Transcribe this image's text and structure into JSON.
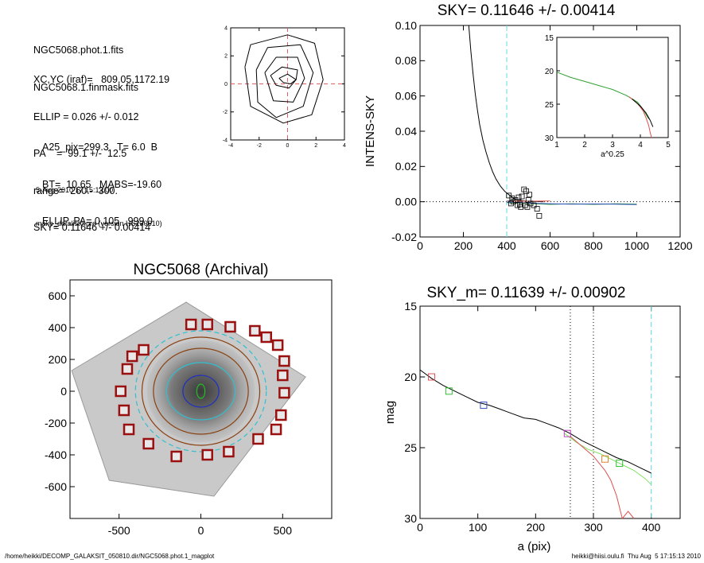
{
  "info_block": {
    "files": [
      "NGC5068.phot.1.fits",
      "NGC5068.1.finmask.fits"
    ],
    "params": [
      "XC,YC (iraf)=   809.05,1172.19",
      "ELLIP = 0.026 +/- 0.012",
      "PA    =  99.1 +/-  12.5",
      "range=  260.-  300.",
      "SKY= 0.11646 +/- 0.00414"
    ],
    "derived": [
      "A25_pix=299.3   T= 6.0  B",
      "BT=  10.65   MABS=-19.60",
      "ELLIP, PA= 0.105   999.0"
    ],
    "timestamp": "5-Aug-2010 17:15:13.00",
    "program": "make_datalist0.pro (version HS230610)"
  },
  "footer": {
    "path": "/home/heikki/DECOMP_GALAKSIT_050810.dir/NGC5068.phot.1_magplot",
    "user": "heikki@hiisi.oulu.fi  Thu Aug  5 17:15:13 2010"
  },
  "chart_data": [
    {
      "id": "center-contour",
      "type": "contour",
      "title": "",
      "xlim": [
        -4,
        4
      ],
      "ylim": [
        -4,
        4
      ],
      "xticks": [
        -4,
        -2,
        0,
        2,
        4
      ],
      "yticks": [
        -4,
        -2,
        0,
        2,
        4
      ],
      "crosshair": [
        0,
        0
      ],
      "colors": {
        "contour": "#000000",
        "crosshair": "#e06060"
      },
      "contours": [
        [
          [
            -0.6,
            0.4
          ],
          [
            0,
            0.7
          ],
          [
            0.6,
            0.3
          ],
          [
            0.2,
            0
          ],
          [
            -0.3,
            0.1
          ],
          [
            -0.6,
            0.4
          ]
        ],
        [
          [
            -1.2,
            0.6
          ],
          [
            -0.4,
            1.2
          ],
          [
            0.7,
            1.0
          ],
          [
            0.6,
            0.3
          ],
          [
            0.1,
            -0.3
          ],
          [
            -0.8,
            -0.1
          ],
          [
            -1.2,
            0.6
          ]
        ],
        [
          [
            -1.6,
            0.8
          ],
          [
            -0.8,
            1.9
          ],
          [
            0.7,
            1.9
          ],
          [
            1.2,
            0.4
          ],
          [
            0.4,
            -1.3
          ],
          [
            -1.0,
            -1.2
          ],
          [
            -1.6,
            0.8
          ]
        ],
        [
          [
            -2.2,
            1.0
          ],
          [
            -1.4,
            2.6
          ],
          [
            0.9,
            2.8
          ],
          [
            1.8,
            0.8
          ],
          [
            1.1,
            -1.6
          ],
          [
            -0.8,
            -2.4
          ],
          [
            -2.1,
            -1.3
          ],
          [
            -2.2,
            1.0
          ]
        ],
        [
          [
            -3.0,
            1.2
          ],
          [
            -2.6,
            2.8
          ],
          [
            0.0,
            3.5
          ],
          [
            1.9,
            2.9
          ],
          [
            2.5,
            0.3
          ],
          [
            1.7,
            -2.2
          ],
          [
            -0.3,
            -2.8
          ],
          [
            -2.6,
            -1.6
          ],
          [
            -3.0,
            1.2
          ]
        ]
      ]
    },
    {
      "id": "sky-profile",
      "type": "line",
      "title": "SKY= 0.11646 +/- 0.00414",
      "xlabel": "",
      "ylabel": "INTENS-SKY",
      "xlim": [
        0,
        1200
      ],
      "ylim": [
        -0.02,
        0.1
      ],
      "xticks": [
        0,
        200,
        400,
        600,
        800,
        1000,
        1200
      ],
      "yticks": [
        -0.02,
        0.0,
        0.02,
        0.04,
        0.06,
        0.08,
        0.1
      ],
      "ytick_labels": [
        "-0.02",
        "0.00",
        "0.02",
        "0.04",
        "0.06",
        "0.08",
        "0.10"
      ],
      "vline": 400,
      "colors": {
        "profile": "#000000",
        "vline": "#5fd8e8",
        "sky_red": "#e05050",
        "green": "#30a030",
        "blue": "#3050c0"
      },
      "series": [
        {
          "x": [
            225,
            235,
            245,
            255,
            265,
            275,
            290,
            305,
            320,
            335,
            350,
            370,
            390,
            410,
            430,
            450,
            480,
            510,
            540,
            570
          ],
          "y": [
            0.1,
            0.085,
            0.072,
            0.061,
            0.052,
            0.044,
            0.035,
            0.028,
            0.022,
            0.017,
            0.013,
            0.009,
            0.006,
            0.004,
            0.002,
            0.001,
            0.0005,
            0.0002,
            0.0001,
            0.0
          ]
        },
        {
          "x": [
            400,
            500,
            600,
            700,
            800,
            900,
            1000
          ],
          "y": [
            -0.0005,
            -0.001,
            -0.0015,
            -0.0012,
            -0.0015,
            -0.0012,
            -0.0014
          ]
        },
        {
          "x": [
            400,
            500,
            600,
            700,
            800,
            900,
            1000
          ],
          "y": [
            -0.0002,
            -0.0008,
            -0.0012,
            -0.0014,
            -0.0013,
            -0.0014,
            -0.0016
          ]
        },
        {
          "x": [
            400,
            500,
            600
          ],
          "y": [
            0.0004,
            0.0003,
            0.0004
          ]
        }
      ],
      "points_x": [
        410,
        425,
        440,
        455,
        470,
        480,
        490,
        500,
        510,
        420,
        450,
        465,
        495,
        525,
        540,
        430,
        460,
        485,
        505,
        550
      ],
      "points_y": [
        0.0035,
        0.002,
        0.001,
        0.0025,
        0.003,
        0.007,
        0.006,
        0.001,
        -0.001,
        -0.001,
        -0.002,
        -0.003,
        -0.003,
        -0.002,
        -0.004,
        0.0,
        -0.0015,
        -0.002,
        0.004,
        -0.008
      ],
      "inset": {
        "xlabel": "a^0.25",
        "xlim": [
          1,
          5
        ],
        "ylim": [
          30,
          15
        ],
        "xticks": [
          1,
          2,
          3,
          4,
          5
        ],
        "yticks": [
          15,
          20,
          25,
          30
        ],
        "series": [
          {
            "x": [
              1.0,
              1.5,
              2.0,
              2.5,
              3.0,
              3.5,
              3.9,
              4.1,
              4.3
            ],
            "y": [
              20.2,
              21.0,
              21.6,
              22.2,
              22.8,
              23.7,
              24.7,
              25.8,
              27.2
            ]
          },
          {
            "x": [
              3.6,
              3.9,
              4.1,
              4.2,
              4.3,
              4.35,
              4.4
            ],
            "y": [
              23.9,
              24.9,
              26.0,
              27.0,
              28.2,
              29.2,
              30.0
            ]
          },
          {
            "x": [
              3.7,
              4.0,
              4.2,
              4.35,
              4.45
            ],
            "y": [
              24.2,
              25.3,
              26.3,
              27.4,
              28.4
            ]
          }
        ]
      }
    },
    {
      "id": "archival-image",
      "type": "image",
      "title": "NGC5068 (Archival)",
      "xlim": [
        -800,
        800
      ],
      "ylim": [
        -800,
        700
      ],
      "xticks": [
        -500,
        0,
        500
      ],
      "yticks": [
        -600,
        -400,
        -200,
        0,
        200,
        400,
        600
      ],
      "colors": {
        "markers": "#9a1010",
        "ellipse_cyan": "#30c0d0",
        "ellipse_brown": "#8a4010",
        "ellipse_blue": "#2030c0",
        "ellipse_green": "#20c020"
      },
      "markers_x": [
        -60,
        40,
        180,
        330,
        400,
        470,
        510,
        500,
        510,
        490,
        460,
        350,
        170,
        40,
        -150,
        -320,
        -440,
        -470,
        -490,
        -450,
        -420,
        -350
      ],
      "markers_y": [
        420,
        420,
        405,
        380,
        340,
        290,
        190,
        100,
        -10,
        -150,
        -240,
        -300,
        -380,
        -400,
        -410,
        -330,
        -240,
        -120,
        0,
        140,
        220,
        260
      ],
      "ellipses": [
        {
          "rx": 400,
          "ry": 380,
          "color": "cyan"
        },
        {
          "rx": 360,
          "ry": 340,
          "color": "brown"
        },
        {
          "rx": 290,
          "ry": 270,
          "color": "brown"
        },
        {
          "rx": 210,
          "ry": 180,
          "color": "cyan"
        },
        {
          "rx": 110,
          "ry": 100,
          "color": "blue"
        },
        {
          "rx": 25,
          "ry": 45,
          "color": "green"
        }
      ]
    },
    {
      "id": "mag-profile",
      "type": "line",
      "title": "SKY_m=  0.11639 +/- 0.00902",
      "xlabel": "a (pix)",
      "ylabel": "mag",
      "xlim": [
        0,
        450
      ],
      "ylim": [
        30,
        15
      ],
      "xticks": [
        0,
        100,
        200,
        300,
        400
      ],
      "yticks": [
        15,
        20,
        25,
        30
      ],
      "vlines_dotted": [
        260,
        300
      ],
      "vline_dashed": 400,
      "series": [
        {
          "x": [
            0,
            20,
            40,
            60,
            80,
            100,
            120,
            140,
            160,
            180,
            200,
            220,
            240,
            260,
            280,
            300,
            320,
            340,
            360,
            380,
            400
          ],
          "y": [
            19.5,
            20.1,
            20.6,
            21.0,
            21.4,
            21.8,
            22.0,
            22.3,
            22.6,
            22.9,
            23.0,
            23.3,
            23.6,
            24.0,
            24.5,
            24.9,
            25.3,
            25.7,
            26.0,
            26.4,
            26.8
          ]
        },
        {
          "x": [
            250,
            270,
            290,
            310,
            330,
            350,
            370,
            390,
            400
          ],
          "y": [
            24.0,
            24.6,
            25.1,
            25.4,
            25.8,
            26.2,
            26.6,
            27.2,
            27.6
          ]
        },
        {
          "x": [
            260,
            280,
            300,
            320,
            330,
            340,
            350,
            360,
            370
          ],
          "y": [
            24.2,
            24.9,
            25.6,
            26.6,
            27.3,
            28.4,
            30.0,
            29.5,
            30.0
          ]
        }
      ],
      "markers": [
        {
          "x": 20,
          "y": 20.0,
          "color": "#e05050"
        },
        {
          "x": 50,
          "y": 21.0,
          "color": "#30c030"
        },
        {
          "x": 110,
          "y": 22.0,
          "color": "#3050c0"
        },
        {
          "x": 255,
          "y": 24.0,
          "color": "#c040c0"
        },
        {
          "x": 320,
          "y": 25.8,
          "color": "#e08030"
        },
        {
          "x": 345,
          "y": 26.1,
          "color": "#30c030"
        }
      ]
    }
  ]
}
